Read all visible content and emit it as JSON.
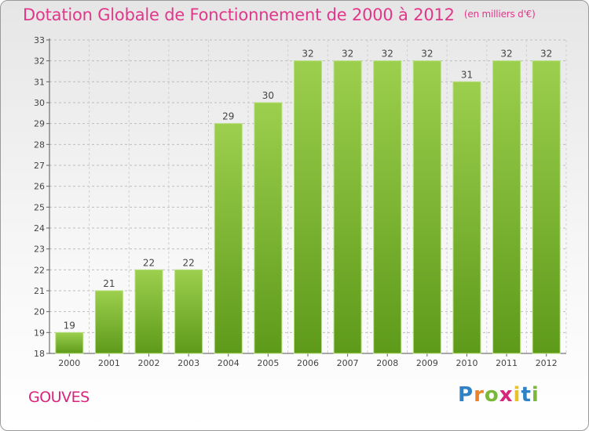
{
  "chart_data": {
    "type": "bar",
    "title": "Dotation Globale de Fonctionnement de 2000 à 2012",
    "unit_note": "(en milliers d'€)",
    "categories": [
      "2000",
      "2001",
      "2002",
      "2003",
      "2004",
      "2005",
      "2006",
      "2007",
      "2008",
      "2009",
      "2010",
      "2011",
      "2012"
    ],
    "values": [
      19,
      21,
      22,
      22,
      29,
      30,
      32,
      32,
      32,
      32,
      31,
      32,
      32
    ],
    "ylim": [
      18,
      33
    ],
    "yticks": [
      18,
      19,
      20,
      21,
      22,
      23,
      24,
      25,
      26,
      27,
      28,
      29,
      30,
      31,
      32,
      33
    ],
    "xlabel": "",
    "ylabel": "",
    "grid": true
  },
  "commune": "GOUVES",
  "logo": {
    "text": "Proxiti",
    "letters": [
      "P",
      "r",
      "o",
      "x",
      "i",
      "t",
      "i"
    ],
    "letter_colors": [
      "#2f82c6",
      "#e8832b",
      "#7bb83a",
      "#d8247d",
      "#e8c12b",
      "#2f82c6",
      "#7bb83a"
    ]
  },
  "colors": {
    "bar_top": "#9ccf4d",
    "bar_bottom": "#5e9a1a",
    "title": "#e0378a",
    "commune": "#d8247d"
  }
}
